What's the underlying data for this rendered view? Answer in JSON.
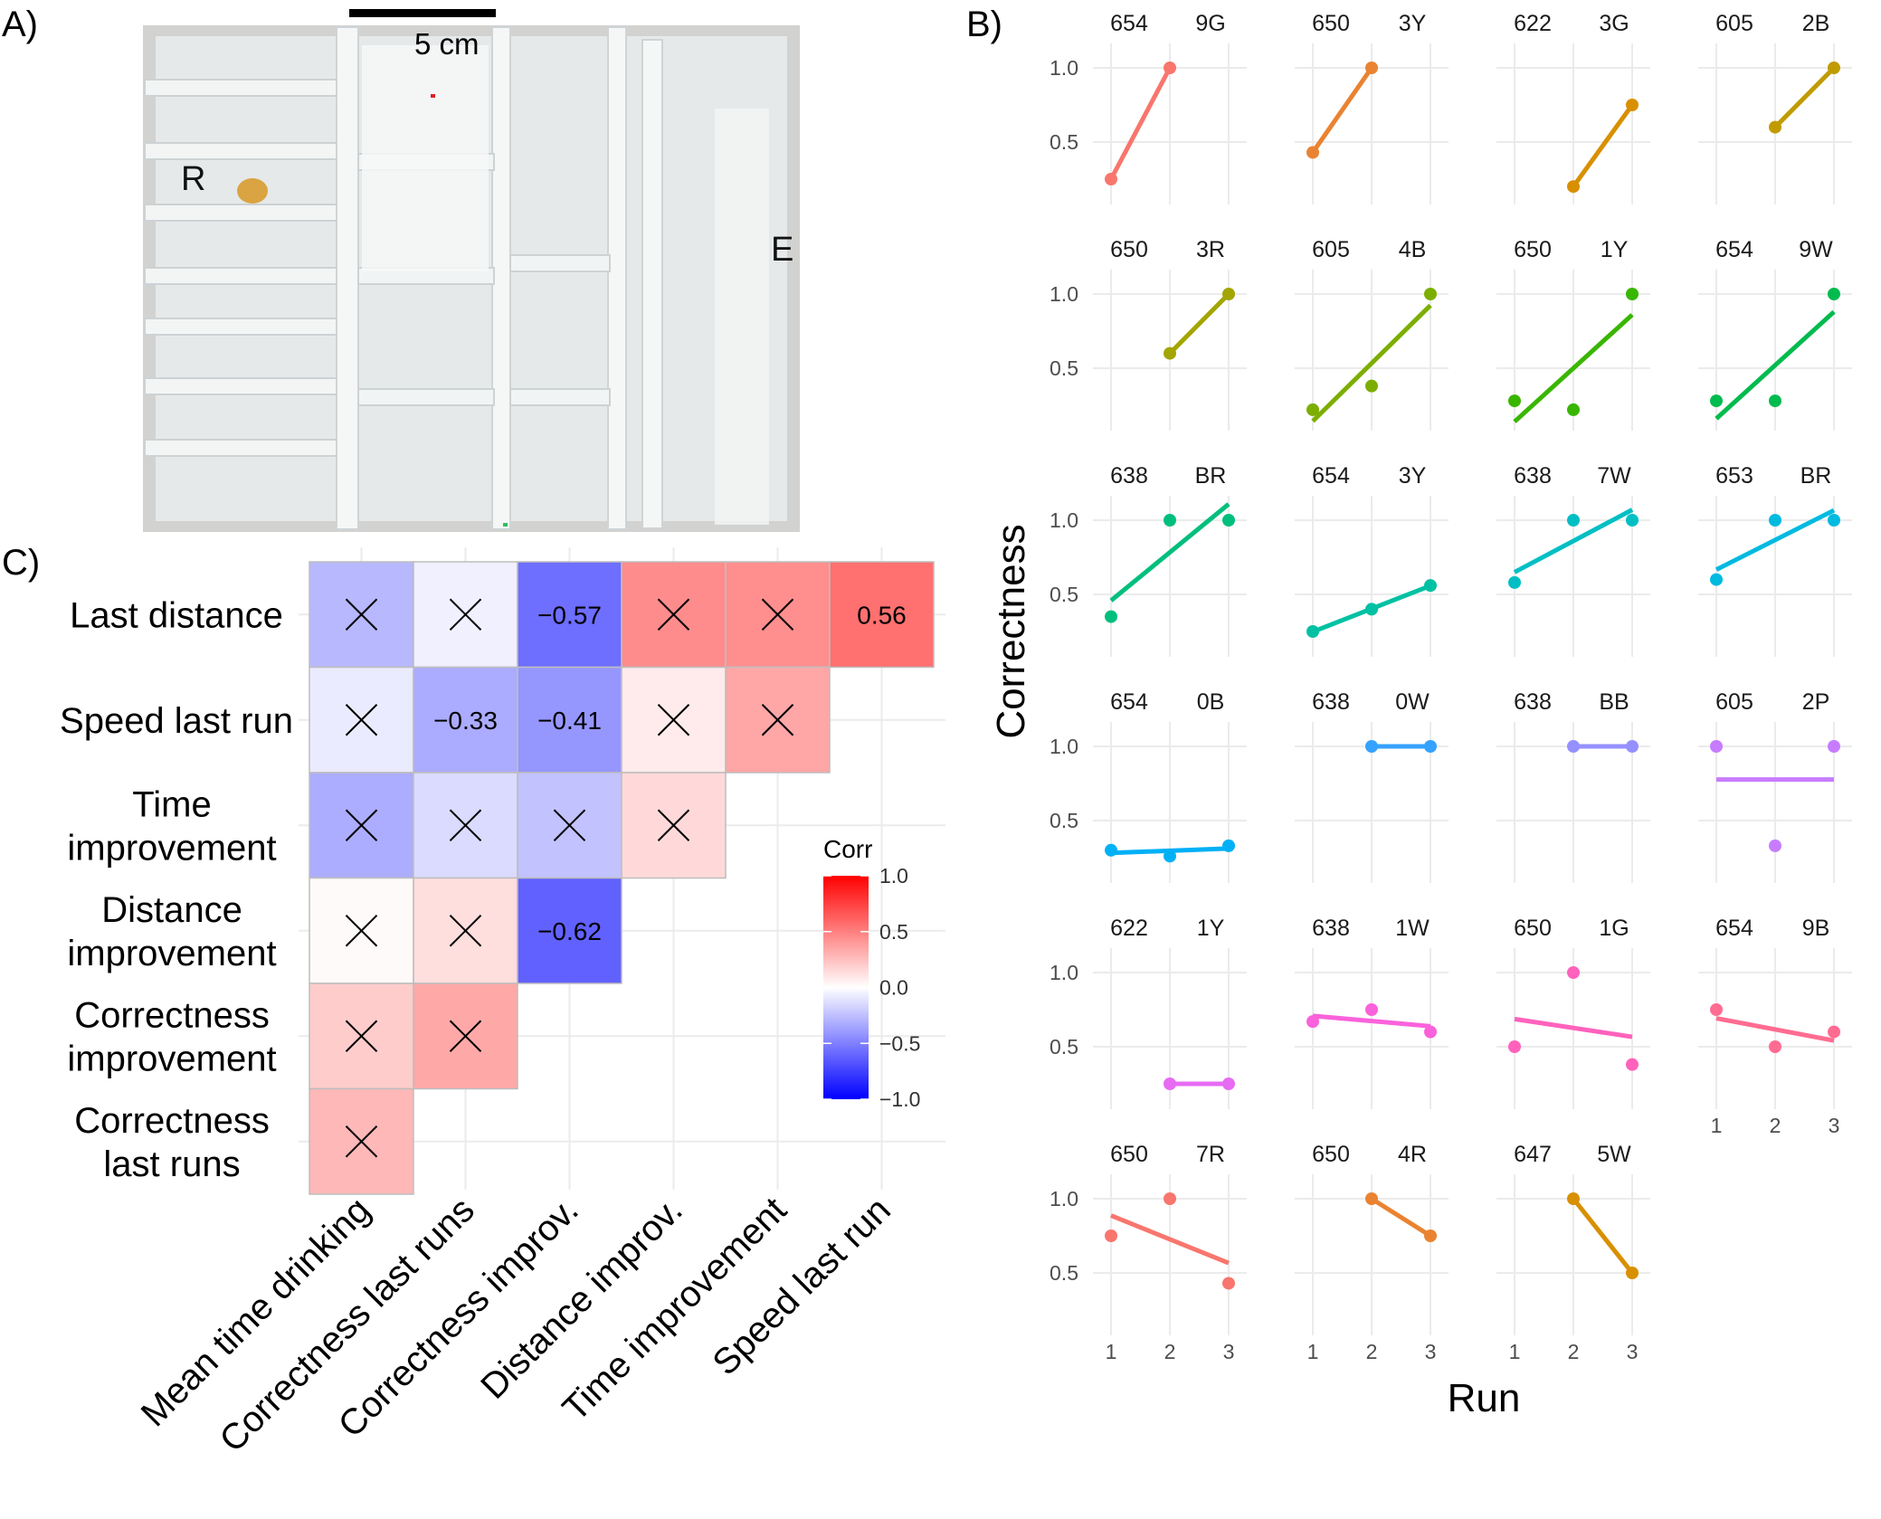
{
  "panels": {
    "a": "A)",
    "b": "B)",
    "c": "C)"
  },
  "photo": {
    "scale_label": "5 cm",
    "labels": [
      "R",
      "E"
    ],
    "colors": {
      "frame": "#c9c8c6",
      "wall": "#eceff0",
      "shelf": "#dde2e4",
      "reward": "#d9a441",
      "mark": "#e02020"
    }
  },
  "chart_data": [
    {
      "type": "heatmap",
      "title": "",
      "rows": [
        "Last distance",
        "Speed last run",
        "Time improvement",
        "Distance improvement",
        "Correctness improvement",
        "Correctness last runs"
      ],
      "row_label_lines": [
        [
          "Last distance"
        ],
        [
          "Speed last run"
        ],
        [
          "Time",
          "improvement"
        ],
        [
          "Distance",
          "improvement"
        ],
        [
          "Correctness",
          "improvement"
        ],
        [
          "Correctness",
          "last runs"
        ]
      ],
      "columns": [
        "Mean time drinking",
        "Correctness last runs",
        "Correctness improv.",
        "Distance improv.",
        "Time improvement",
        "Speed last run"
      ],
      "values": [
        [
          -0.28,
          -0.06,
          -0.57,
          0.45,
          0.44,
          0.56
        ],
        [
          -0.08,
          -0.33,
          -0.41,
          0.08,
          0.35,
          null
        ],
        [
          -0.32,
          -0.14,
          -0.24,
          0.15,
          null,
          null
        ],
        [
          0.02,
          0.13,
          -0.62,
          null,
          null,
          null
        ],
        [
          0.2,
          0.34,
          null,
          null,
          null,
          null
        ],
        [
          0.28,
          null,
          null,
          null,
          null,
          null
        ]
      ],
      "labels": [
        [
          "×",
          "×",
          "−0.57",
          "×",
          "×",
          "0.56"
        ],
        [
          "×",
          "−0.33",
          "−0.41",
          "×",
          "×",
          null
        ],
        [
          "×",
          "×",
          "×",
          "×",
          null,
          null
        ],
        [
          "×",
          "×",
          "−0.62",
          null,
          null,
          null
        ],
        [
          "×",
          "×",
          null,
          null,
          null,
          null
        ],
        [
          "×",
          null,
          null,
          null,
          null,
          null
        ]
      ],
      "legend": {
        "title": "Corr",
        "range": [
          -1,
          1
        ],
        "ticks": [
          1.0,
          0.5,
          0.0,
          -0.5,
          -1.0
        ],
        "tick_labels": [
          "1.0",
          "0.5",
          "0.0",
          "−0.5",
          "−1.0"
        ],
        "colors": {
          "low": "#0000ff",
          "mid": "#ffffff",
          "high": "#ff0000"
        },
        "placement": "right"
      },
      "grid": true
    },
    {
      "type": "scatter",
      "title": "",
      "xlabel": "Run",
      "ylabel": "Correctness",
      "x_ticks": [
        1,
        2,
        3
      ],
      "y_ticks": [
        0.5,
        1.0
      ],
      "y_tick_labels": [
        "0.5",
        "1.0"
      ],
      "xlim": [
        0.8,
        3.2
      ],
      "ylim": [
        0.1,
        1.1
      ],
      "grid": true,
      "fit": "linear",
      "facets": [
        {
          "strip": [
            "654",
            "9G"
          ],
          "color": "#f8766d",
          "points": [
            [
              1,
              0.25
            ],
            [
              2,
              1.0
            ]
          ]
        },
        {
          "strip": [
            "650",
            "3Y"
          ],
          "color": "#ea8331",
          "points": [
            [
              1,
              0.43
            ],
            [
              2,
              1.0
            ]
          ]
        },
        {
          "strip": [
            "622",
            "3G"
          ],
          "color": "#d89000",
          "points": [
            [
              2,
              0.2
            ],
            [
              3,
              0.75
            ]
          ]
        },
        {
          "strip": [
            "605",
            "2B"
          ],
          "color": "#c09b00",
          "points": [
            [
              2,
              0.6
            ],
            [
              3,
              1.0
            ]
          ]
        },
        {
          "strip": [
            "650",
            "3R"
          ],
          "color": "#a3a500",
          "points": [
            [
              2,
              0.6
            ],
            [
              3,
              1.0
            ]
          ]
        },
        {
          "strip": [
            "605",
            "4B"
          ],
          "color": "#7cae00",
          "points": [
            [
              1,
              0.22
            ],
            [
              2,
              0.38
            ],
            [
              3,
              1.0
            ]
          ]
        },
        {
          "strip": [
            "650",
            "1Y"
          ],
          "color": "#39b600",
          "points": [
            [
              1,
              0.28
            ],
            [
              2,
              0.22
            ],
            [
              3,
              1.0
            ]
          ]
        },
        {
          "strip": [
            "654",
            "9W"
          ],
          "color": "#00bb4e",
          "points": [
            [
              1,
              0.28
            ],
            [
              2,
              0.28
            ],
            [
              3,
              1.0
            ]
          ]
        },
        {
          "strip": [
            "638",
            "BR"
          ],
          "color": "#00bf7d",
          "points": [
            [
              1,
              0.35
            ],
            [
              2,
              1.0
            ],
            [
              3,
              1.0
            ]
          ]
        },
        {
          "strip": [
            "654",
            "3Y"
          ],
          "color": "#00c1a3",
          "points": [
            [
              1,
              0.25
            ],
            [
              2,
              0.4
            ],
            [
              3,
              0.56
            ]
          ]
        },
        {
          "strip": [
            "638",
            "7W"
          ],
          "color": "#00bfc4",
          "points": [
            [
              1,
              0.58
            ],
            [
              2,
              1.0
            ],
            [
              3,
              1.0
            ]
          ]
        },
        {
          "strip": [
            "653",
            "BR"
          ],
          "color": "#00bae0",
          "points": [
            [
              1,
              0.6
            ],
            [
              2,
              1.0
            ],
            [
              3,
              1.0
            ]
          ]
        },
        {
          "strip": [
            "654",
            "0B"
          ],
          "color": "#00b0f6",
          "points": [
            [
              1,
              0.3
            ],
            [
              2,
              0.26
            ],
            [
              3,
              0.33
            ]
          ]
        },
        {
          "strip": [
            "638",
            "0W"
          ],
          "color": "#35a2ff",
          "points": [
            [
              2,
              1.0
            ],
            [
              3,
              1.0
            ]
          ]
        },
        {
          "strip": [
            "638",
            "BB"
          ],
          "color": "#9590ff",
          "points": [
            [
              2,
              1.0
            ],
            [
              3,
              1.0
            ]
          ]
        },
        {
          "strip": [
            "605",
            "2P"
          ],
          "color": "#c77cff",
          "points": [
            [
              1,
              1.0
            ],
            [
              2,
              0.33
            ],
            [
              3,
              1.0
            ]
          ]
        },
        {
          "strip": [
            "622",
            "1Y"
          ],
          "color": "#e76bf3",
          "points": [
            [
              2,
              0.25
            ],
            [
              3,
              0.25
            ]
          ]
        },
        {
          "strip": [
            "638",
            "1W"
          ],
          "color": "#fa62db",
          "points": [
            [
              1,
              0.67
            ],
            [
              2,
              0.75
            ],
            [
              3,
              0.6
            ]
          ]
        },
        {
          "strip": [
            "650",
            "1G"
          ],
          "color": "#ff62bc",
          "points": [
            [
              1,
              0.5
            ],
            [
              2,
              1.0
            ],
            [
              3,
              0.38
            ]
          ]
        },
        {
          "strip": [
            "654",
            "9B"
          ],
          "color": "#ff6c91",
          "points": [
            [
              1,
              0.75
            ],
            [
              2,
              0.5
            ],
            [
              3,
              0.6
            ]
          ]
        },
        {
          "strip": [
            "650",
            "7R"
          ],
          "color": "#f8766d",
          "points": [
            [
              1,
              0.75
            ],
            [
              2,
              1.0
            ],
            [
              3,
              0.43
            ]
          ]
        },
        {
          "strip": [
            "650",
            "4R"
          ],
          "color": "#ea8331",
          "points": [
            [
              2,
              1.0
            ],
            [
              3,
              0.75
            ]
          ]
        },
        {
          "strip": [
            "647",
            "5W"
          ],
          "color": "#d89000",
          "points": [
            [
              2,
              1.0
            ],
            [
              3,
              0.5
            ]
          ]
        }
      ]
    }
  ]
}
